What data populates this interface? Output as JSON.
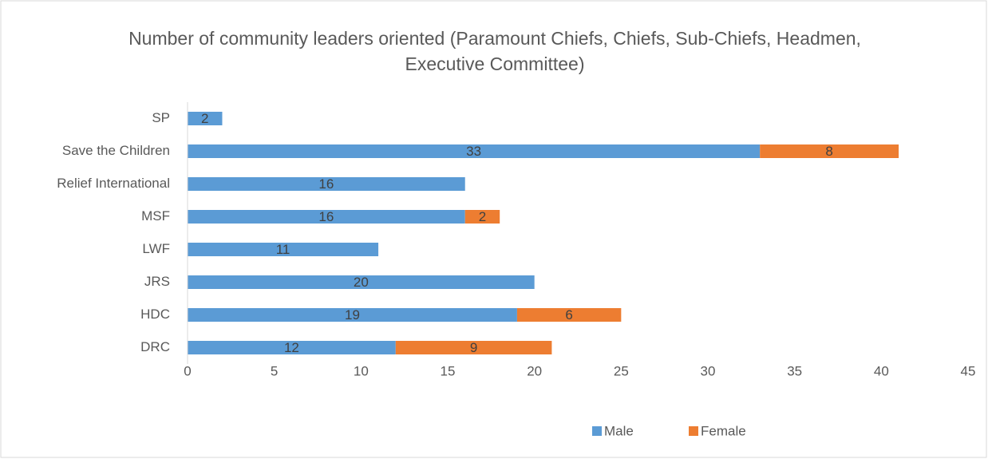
{
  "chart_data": {
    "type": "stacked-barh",
    "title": "Number of community leaders oriented (Paramount Chiefs, Chiefs, Sub-Chiefs, Headmen, Executive Committee)",
    "categories": [
      "SP",
      "Save the Children",
      "Relief International",
      "MSF",
      "LWF",
      "JRS",
      "HDC",
      "DRC"
    ],
    "series": [
      {
        "name": "Male",
        "color": "#5b9bd5",
        "values": [
          2,
          33,
          16,
          16,
          11,
          20,
          19,
          12
        ]
      },
      {
        "name": "Female",
        "color": "#ed7d31",
        "values": [
          null,
          8,
          null,
          2,
          null,
          null,
          6,
          9
        ]
      }
    ],
    "xlim": [
      0,
      45
    ],
    "xticks": [
      0,
      5,
      10,
      15,
      20,
      25,
      30,
      35,
      40,
      45
    ],
    "grid": false,
    "legend": "bottom"
  }
}
